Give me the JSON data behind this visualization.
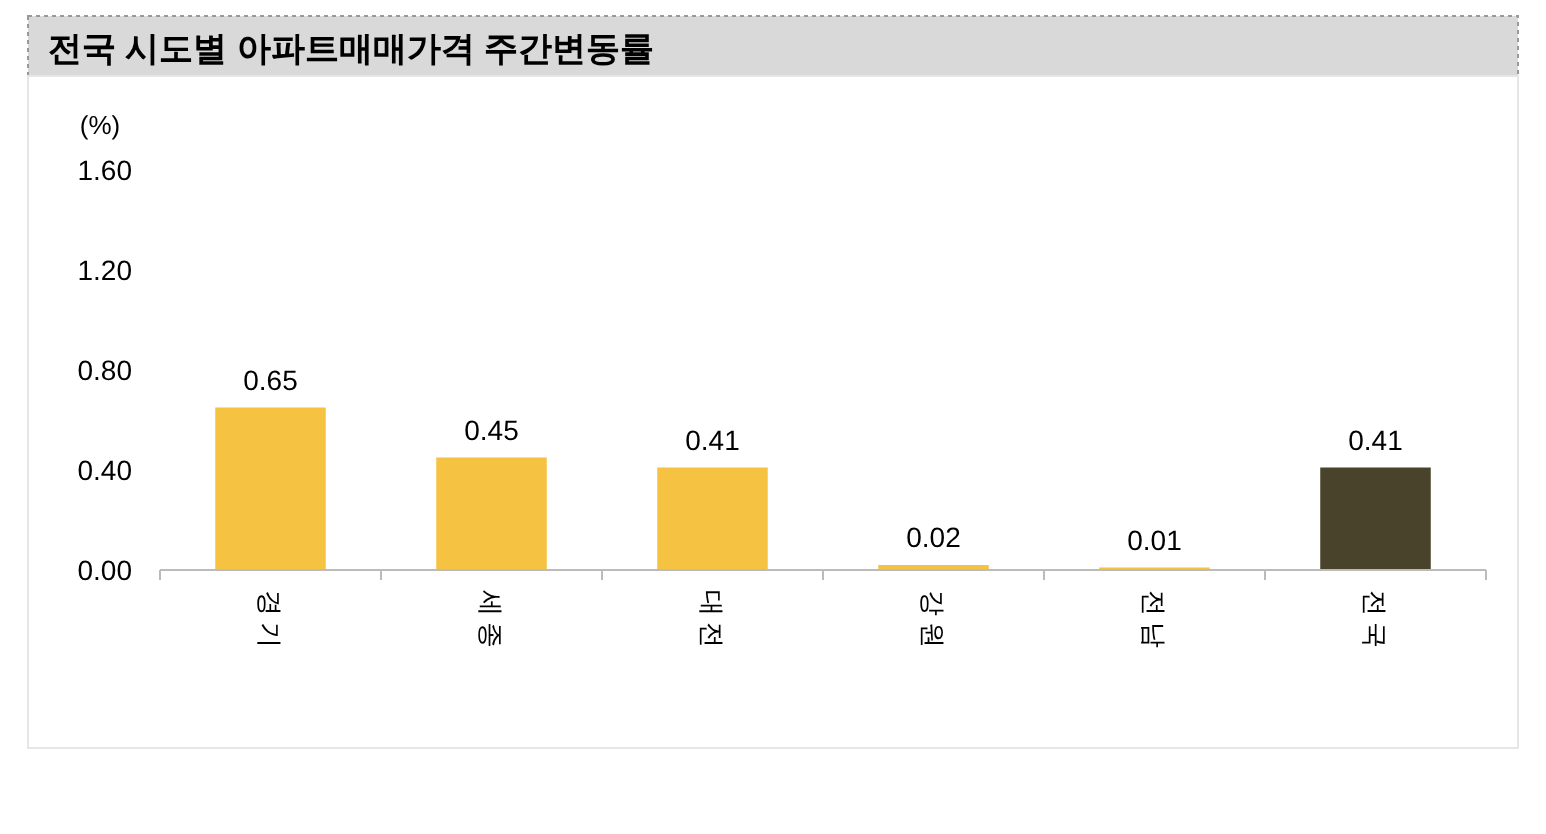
{
  "chart_data": {
    "type": "bar",
    "title": "전국 시도별 아파트매매가격 주간변동률",
    "ylabel": "(%)",
    "categories": [
      "경기",
      "세종",
      "대전",
      "강원",
      "전남",
      "전국"
    ],
    "values": [
      0.65,
      0.45,
      0.41,
      0.02,
      0.01,
      0.41
    ],
    "colors": [
      "#f5c242",
      "#f5c242",
      "#f5c242",
      "#f5c242",
      "#f5c242",
      "#48432a"
    ],
    "ylim": [
      0,
      1.6
    ],
    "yticks": [
      {
        "value": 0,
        "label": "0.00"
      },
      {
        "value": 0.4,
        "label": "0.40"
      },
      {
        "value": 0.8,
        "label": "0.80"
      },
      {
        "value": 1.2,
        "label": "1.20"
      },
      {
        "value": 1.6,
        "label": "1.60"
      }
    ],
    "data_labels": true
  }
}
